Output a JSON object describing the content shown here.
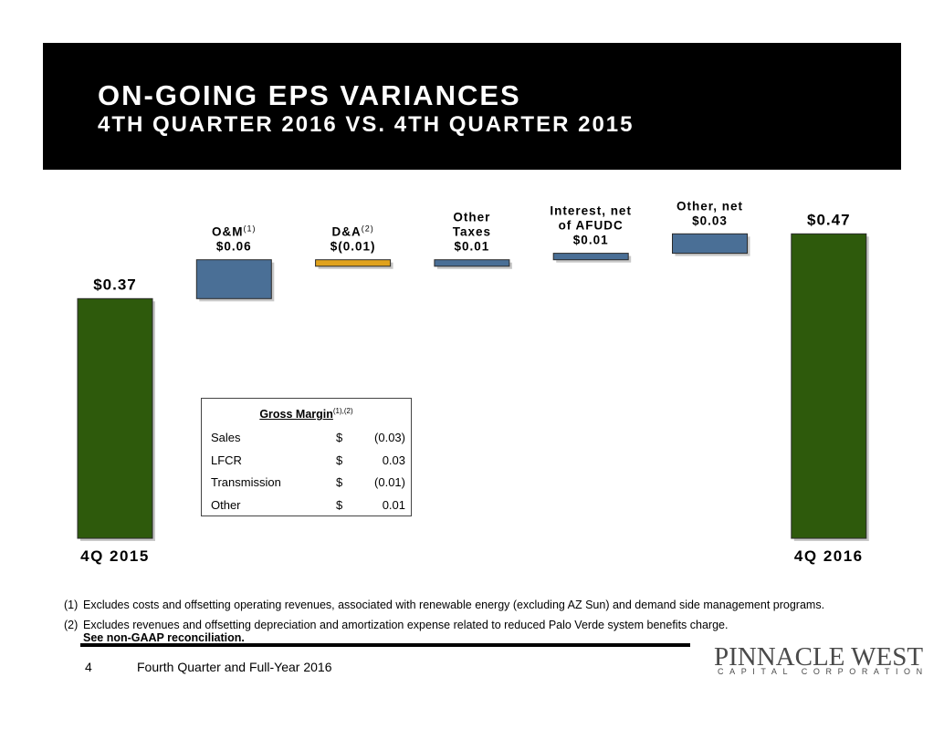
{
  "header": {
    "title": "ON-GOING EPS VARIANCES",
    "subtitle": "4TH QUARTER 2016 VS. 4TH QUARTER 2015"
  },
  "chart_data": {
    "type": "bar",
    "subtype": "waterfall",
    "categories": [
      "4Q 2015",
      "O&M",
      "D&A",
      "Other Taxes",
      "Interest, net of AFUDC",
      "Other, net",
      "4Q 2016"
    ],
    "values": [
      0.37,
      0.06,
      -0.01,
      0.01,
      0.01,
      0.03,
      0.47
    ],
    "bar_kinds": [
      "total",
      "delta",
      "delta",
      "delta",
      "delta",
      "delta",
      "total"
    ],
    "data_labels": [
      {
        "lines": [
          "$0.37"
        ],
        "sup": ""
      },
      {
        "lines": [
          "O&M",
          "$0.06"
        ],
        "sup": "(1)"
      },
      {
        "lines": [
          "D&A",
          "$(0.01)"
        ],
        "sup": "(2)"
      },
      {
        "lines": [
          "Other",
          "Taxes",
          "$0.01"
        ],
        "sup": ""
      },
      {
        "lines": [
          "Interest, net",
          "of AFUDC",
          "$0.01"
        ],
        "sup": ""
      },
      {
        "lines": [
          "Other, net",
          "$0.03"
        ],
        "sup": ""
      },
      {
        "lines": [
          "$0.47"
        ],
        "sup": ""
      }
    ],
    "colors": {
      "total": "#2e5a0c",
      "increase": "#4a6f96",
      "decrease": "#e0a21c"
    }
  },
  "gross_margin": {
    "title": "Gross Margin",
    "sup": "(1),(2)",
    "rows": [
      {
        "label": "Sales",
        "currency": "$",
        "value": "(0.03)"
      },
      {
        "label": "LFCR",
        "currency": "$",
        "value": "0.03"
      },
      {
        "label": "Transmission",
        "currency": "$",
        "value": "(0.01)"
      },
      {
        "label": "Other",
        "currency": "$",
        "value": "0.01"
      }
    ]
  },
  "footnotes": [
    {
      "num": "(1)",
      "text": "Excludes costs and offsetting operating revenues, associated with renewable energy (excluding AZ Sun) and demand side management programs."
    },
    {
      "num": "(2)",
      "text": "Excludes revenues and offsetting depreciation and amortization expense related to reduced Palo Verde system benefits charge.",
      "bold": "See non-GAAP reconciliation."
    }
  ],
  "footer": {
    "page": "4",
    "text": "Fourth Quarter and Full-Year 2016"
  },
  "logo": {
    "name": "PINNACLE WEST",
    "tagline": "CAPITAL CORPORATION"
  }
}
